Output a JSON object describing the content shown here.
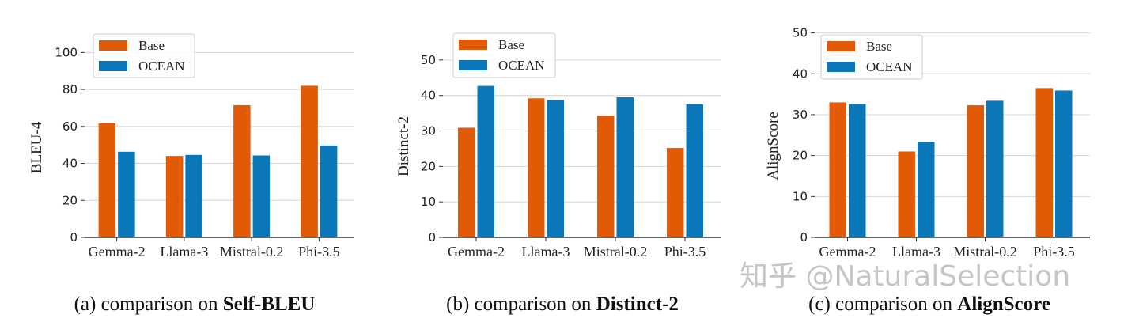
{
  "colors": {
    "Base": "#e35a06",
    "OCEAN": "#0a78b8",
    "grid": "#d4d4d4",
    "axis": "#333333"
  },
  "chart_data": [
    {
      "type": "bar",
      "categories": [
        "Gemma-2",
        "Llama-3",
        "Mistral-0.2",
        "Phi-3.5"
      ],
      "series": [
        {
          "name": "Base",
          "values": [
            61.7,
            44.0,
            71.5,
            82.0
          ]
        },
        {
          "name": "OCEAN",
          "values": [
            46.3,
            44.6,
            44.3,
            49.7
          ]
        }
      ],
      "xlabel": "",
      "ylabel": "BLEU-4",
      "ylim": [
        0,
        110
      ],
      "yticks": [
        0,
        20,
        40,
        60,
        80,
        100
      ],
      "grid": true,
      "legend": "top-left",
      "caption_prefix": "(a) comparison on ",
      "caption_bold": "Self-BLEU"
    },
    {
      "type": "bar",
      "categories": [
        "Gemma-2",
        "Llama-3",
        "Mistral-0.2",
        "Phi-3.5"
      ],
      "series": [
        {
          "name": "Base",
          "values": [
            30.9,
            39.2,
            34.3,
            25.2
          ]
        },
        {
          "name": "OCEAN",
          "values": [
            42.7,
            38.7,
            39.5,
            37.5
          ]
        }
      ],
      "xlabel": "",
      "ylabel": "Distinct-2",
      "ylim": [
        0,
        58
      ],
      "yticks": [
        0,
        10,
        20,
        30,
        40,
        50
      ],
      "grid": true,
      "legend": "top-left",
      "caption_prefix": "(b) comparison on ",
      "caption_bold": "Distinct-2"
    },
    {
      "type": "bar",
      "categories": [
        "Gemma-2",
        "Llama-3",
        "Mistral-0.2",
        "Phi-3.5"
      ],
      "series": [
        {
          "name": "Base",
          "values": [
            33.0,
            21.0,
            32.3,
            36.5
          ]
        },
        {
          "name": "OCEAN",
          "values": [
            32.6,
            23.4,
            33.4,
            35.9
          ]
        }
      ],
      "xlabel": "",
      "ylabel": "AlignScore",
      "ylim": [
        0,
        50.5
      ],
      "yticks": [
        0,
        10,
        20,
        30,
        40,
        50
      ],
      "grid": true,
      "legend": "top-left",
      "caption_prefix": "(c) comparison on ",
      "caption_bold": "AlignScore"
    }
  ],
  "watermark": "知乎 @NaturalSelection"
}
